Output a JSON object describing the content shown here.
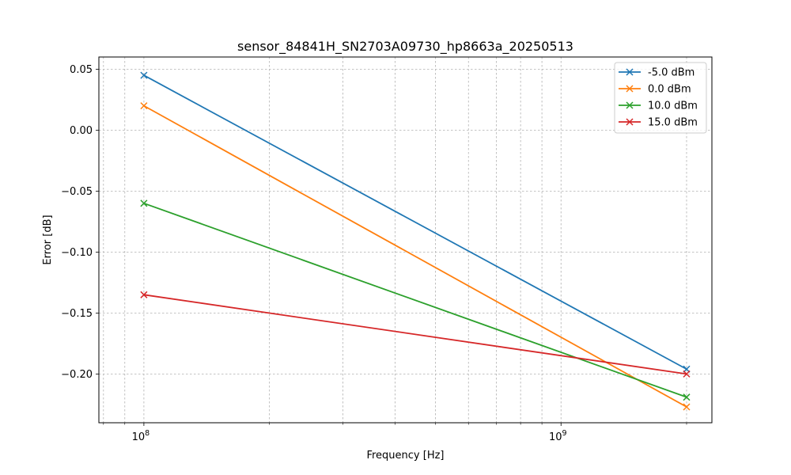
{
  "chart_data": {
    "type": "line",
    "title": "sensor_84841H_SN2703A09730_hp8663a_20250513",
    "xlabel": "Frequency [Hz]",
    "ylabel": "Error [dB]",
    "xscale": "log",
    "xlim": [
      78000000,
      2300000000
    ],
    "ylim": [
      -0.24,
      0.06
    ],
    "grid": true,
    "legend_position": "top-right",
    "x": [
      100000000,
      2000000000
    ],
    "xticks": [
      {
        "value": 100000000,
        "base": "10",
        "exp": "8"
      },
      {
        "value": 1000000000,
        "base": "10",
        "exp": "9"
      }
    ],
    "yticks": [
      {
        "value": 0.05,
        "label": "0.05"
      },
      {
        "value": 0.0,
        "label": "0.00"
      },
      {
        "value": -0.05,
        "label": "−0.05"
      },
      {
        "value": -0.1,
        "label": "−0.10"
      },
      {
        "value": -0.15,
        "label": "−0.15"
      },
      {
        "value": -0.2,
        "label": "−0.20"
      }
    ],
    "series": [
      {
        "name": "-5.0 dBm",
        "color": "#1f77b4",
        "values": [
          0.045,
          -0.196
        ]
      },
      {
        "name": "0.0 dBm",
        "color": "#ff7f0e",
        "values": [
          0.02,
          -0.227
        ]
      },
      {
        "name": "10.0 dBm",
        "color": "#2ca02c",
        "values": [
          -0.06,
          -0.219
        ]
      },
      {
        "name": "15.0 dBm",
        "color": "#d62728",
        "values": [
          -0.135,
          -0.2
        ]
      }
    ],
    "marker": "x-marker"
  }
}
